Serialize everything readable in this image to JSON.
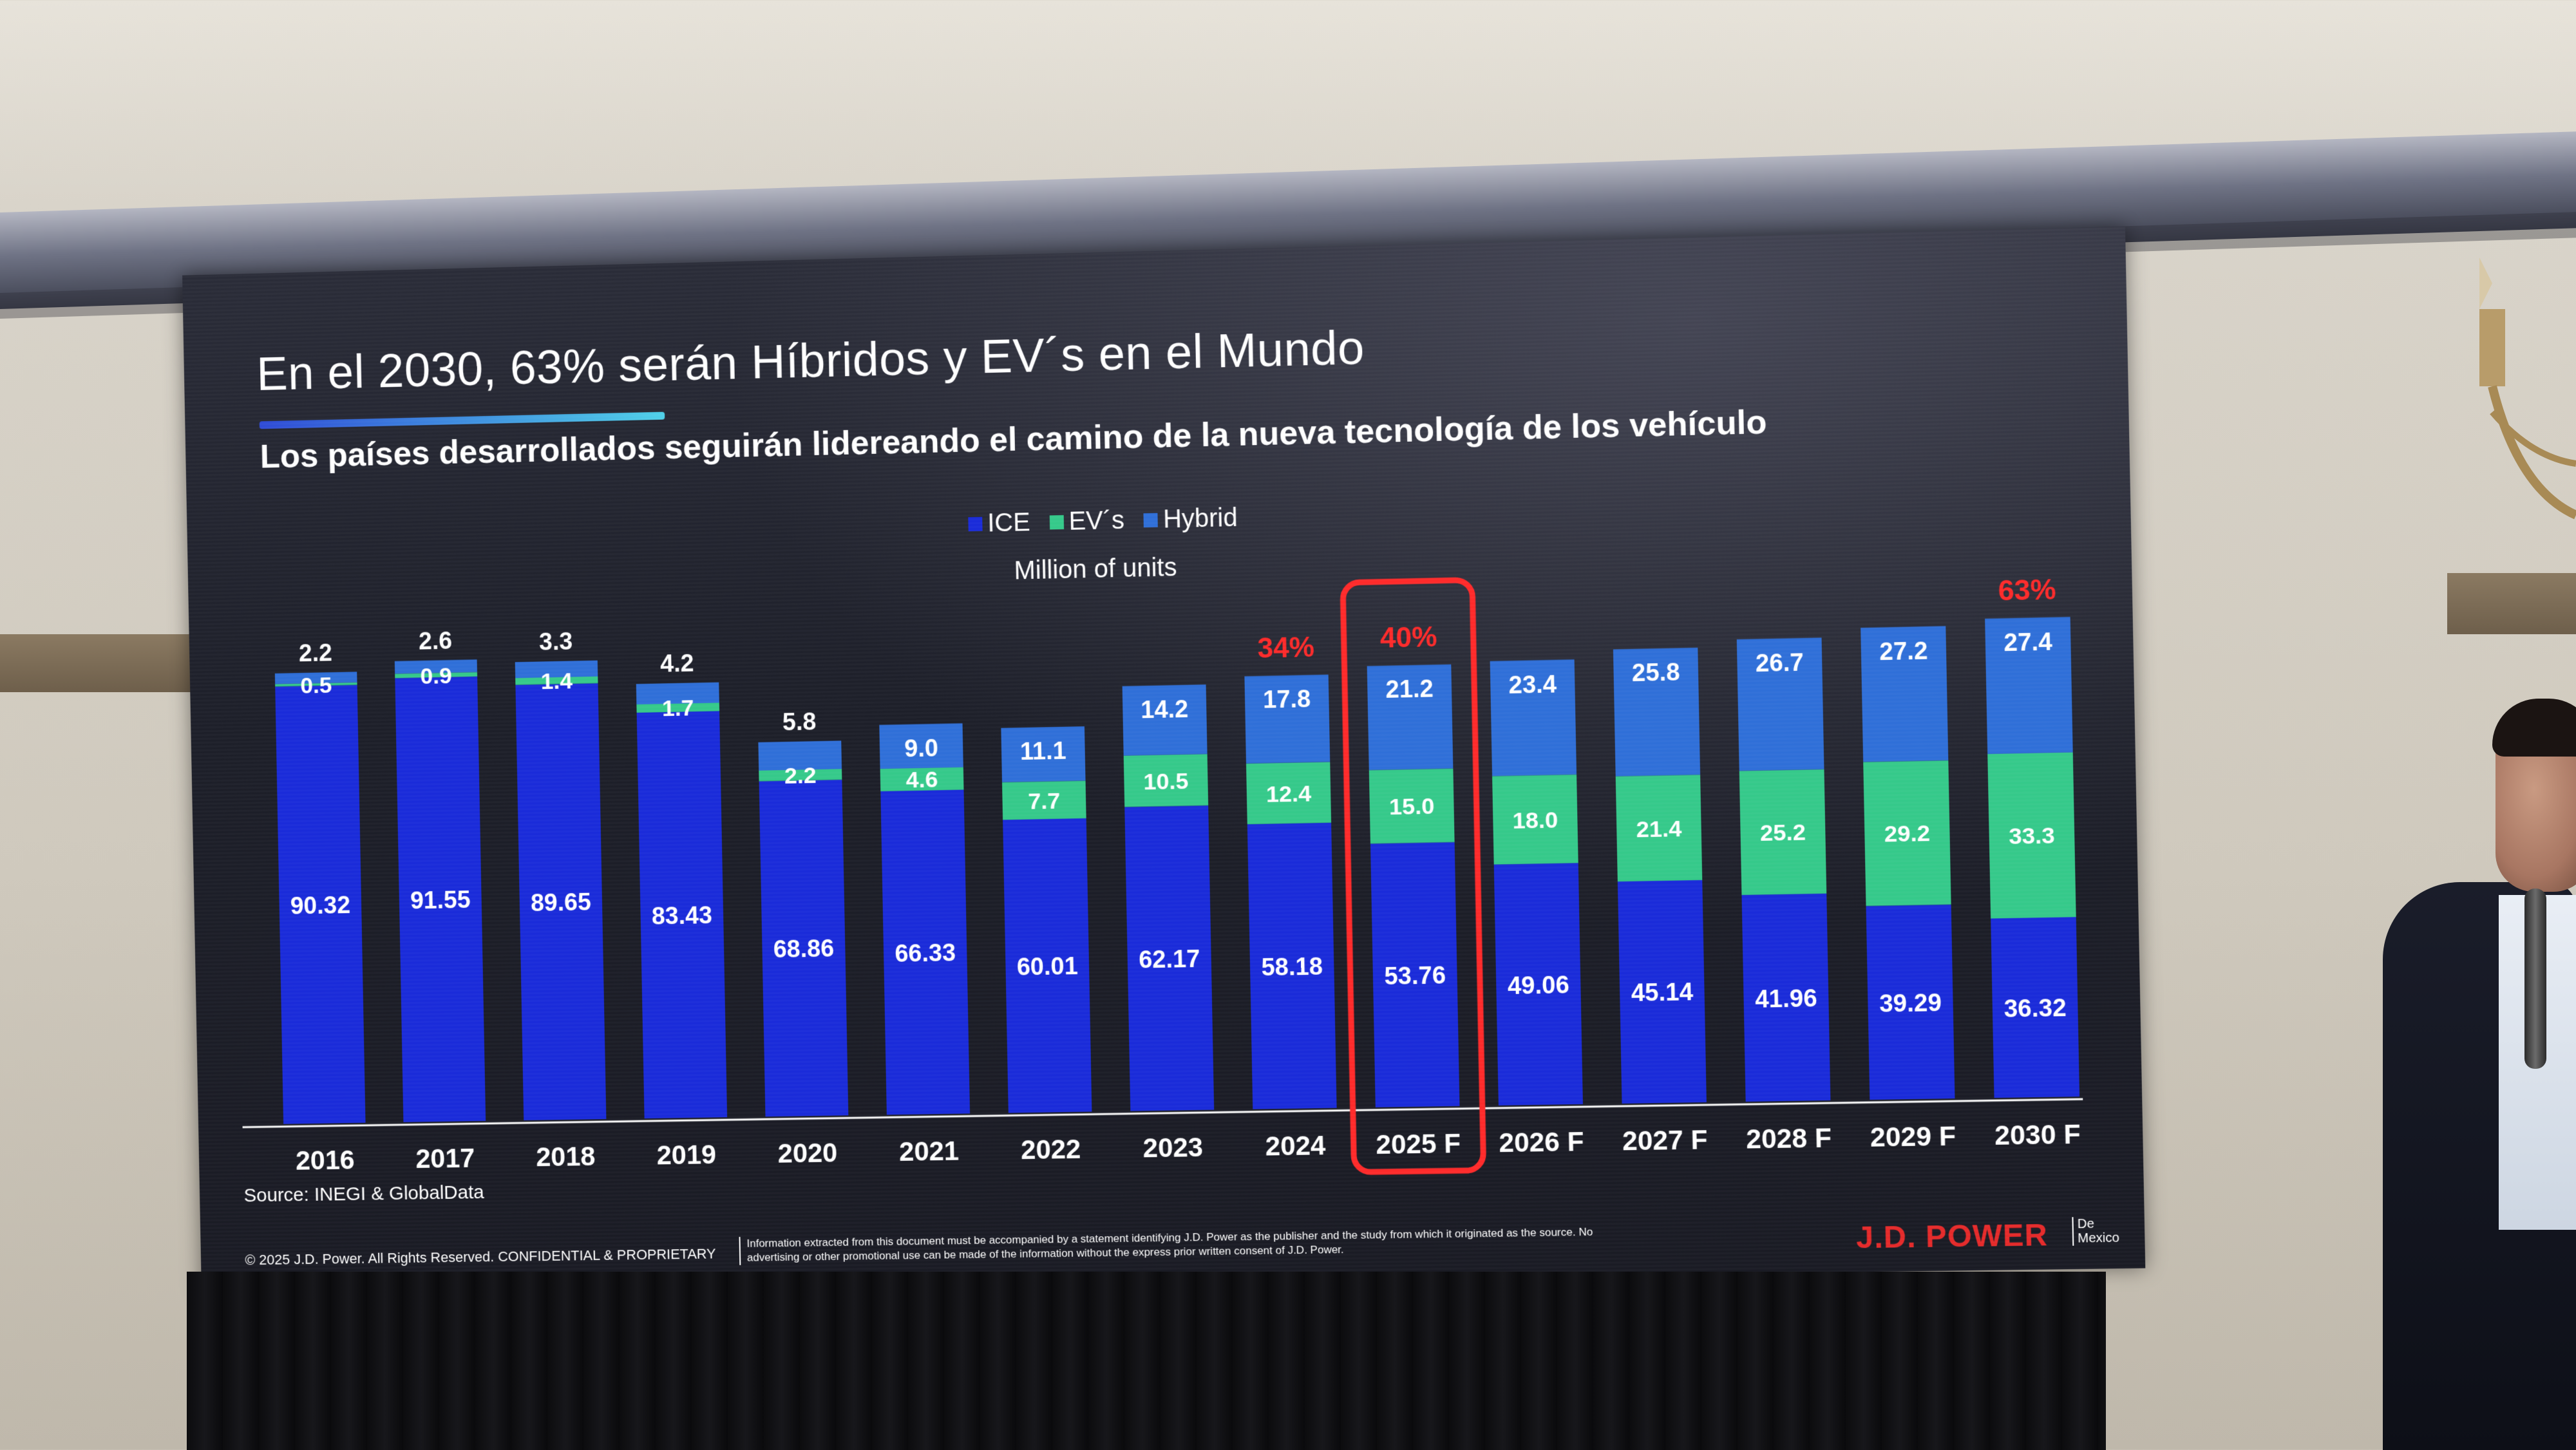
{
  "slide": {
    "title": "En el 2030, 63% serán Híbridos y EV´s en el Mundo",
    "subtitle": "Los países desarrollados seguirán lidereando el camino de la nueva tecnología de los vehículo",
    "unit_label": "Million of units",
    "source": "Source: INEGI & GlobalData",
    "copyright": "© 2025 J.D. Power. All Rights Reserved. CONFIDENTIAL & PROPRIETARY",
    "disclaimer": "Information extracted from this document must be accompanied by a statement identifying J.D. Power as the publisher and the study from which it originated as the source. No advertising or other promotional use can be made of the information without the express prior written consent of J.D. Power.",
    "brand": "J.D. POWER",
    "brand_sub_1": "De",
    "brand_sub_2": "Mexico"
  },
  "colors": {
    "ice": "#1a2bd9",
    "ev": "#35c98a",
    "hybrid": "#2f6fd8",
    "highlight": "#ff2a2a",
    "text": "#ffffff"
  },
  "chart_data": {
    "type": "bar",
    "stacked": true,
    "categories": [
      "2016",
      "2017",
      "2018",
      "2019",
      "2020",
      "2021",
      "2022",
      "2023",
      "2024",
      "2025 F",
      "2026 F",
      "2027 F",
      "2028 F",
      "2029 F",
      "2030 F"
    ],
    "series": [
      {
        "name": "ICE",
        "values": [
          90.32,
          91.55,
          89.65,
          83.43,
          68.86,
          66.33,
          60.01,
          62.17,
          58.18,
          53.76,
          49.06,
          45.14,
          41.96,
          39.29,
          36.32
        ]
      },
      {
        "name": "EV´s",
        "values": [
          0.5,
          0.9,
          1.4,
          1.7,
          2.2,
          4.6,
          7.7,
          10.5,
          12.4,
          15.0,
          18.0,
          21.4,
          25.2,
          29.2,
          33.3
        ]
      },
      {
        "name": "Hybrid",
        "values": [
          2.2,
          2.6,
          3.3,
          4.2,
          5.8,
          9.0,
          11.1,
          14.2,
          17.8,
          21.2,
          23.4,
          25.8,
          26.7,
          27.2,
          27.4
        ]
      }
    ],
    "legend": [
      "ICE",
      "EV´s",
      "Hybrid"
    ],
    "legend_position": "top",
    "percent_labels": [
      {
        "category": "2024",
        "label": "34%"
      },
      {
        "category": "2025 F",
        "label": "40%"
      },
      {
        "category": "2030 F",
        "label": "63%"
      }
    ],
    "highlighted_category": "2025 F",
    "grid": false
  }
}
